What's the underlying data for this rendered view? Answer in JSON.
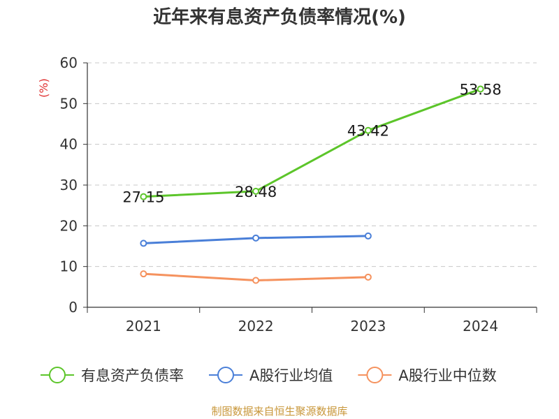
{
  "chart_data": {
    "type": "line",
    "title": "近年来有息资产负债率情况(%)",
    "ylabel": "(%)",
    "xlabel": "",
    "categories": [
      "2021",
      "2022",
      "2023",
      "2024"
    ],
    "ylim": [
      0,
      60
    ],
    "yticks": [
      0,
      10,
      20,
      30,
      40,
      50,
      60
    ],
    "grid": true,
    "legend_position": "bottom",
    "series": [
      {
        "name": "有息资产负债率",
        "color": "#5cc52a",
        "values": [
          27.15,
          28.48,
          43.42,
          53.58
        ],
        "labels": [
          "27.15",
          "28.48",
          "43.42",
          "53.58"
        ],
        "show_labels": true
      },
      {
        "name": "A股行业均值",
        "color": "#4a7fd8",
        "values": [
          15.7,
          17.0,
          17.5,
          null
        ],
        "show_labels": false
      },
      {
        "name": "A股行业中位数",
        "color": "#f5925e",
        "values": [
          8.2,
          6.6,
          7.4,
          null
        ],
        "show_labels": false
      }
    ]
  },
  "source_note": "制图数据来自恒生聚源数据库"
}
